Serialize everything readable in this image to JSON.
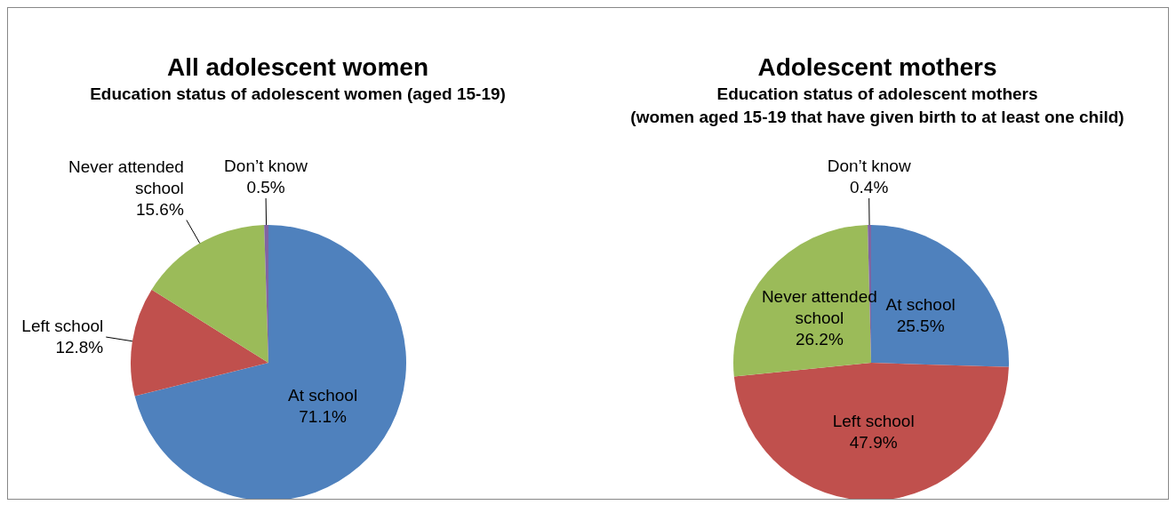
{
  "chart_data": [
    {
      "type": "pie",
      "title": "All adolescent  women",
      "subtitle": "Education status of adolescent women (aged 15-19)",
      "categories": [
        "At school",
        "Left school",
        "Never attended school",
        "Don’t know"
      ],
      "values": [
        71.1,
        12.8,
        15.6,
        0.5
      ],
      "value_labels": [
        "71.1%",
        "12.8%",
        "15.6%",
        "0.5%"
      ],
      "colors": [
        "#4f81bd",
        "#c0504d",
        "#9bbb59",
        "#8064a2"
      ],
      "legend": false
    },
    {
      "type": "pie",
      "title": "Adolescent mothers",
      "subtitle": "Education status of adolescent mothers\n(women aged 15-19 that have given birth to at least one child)",
      "categories": [
        "At school",
        "Left school",
        "Never attended school",
        "Don’t know"
      ],
      "values": [
        25.5,
        47.9,
        26.2,
        0.4
      ],
      "value_labels": [
        "25.5%",
        "47.9%",
        "26.2%",
        "0.4%"
      ],
      "colors": [
        "#4f81bd",
        "#c0504d",
        "#9bbb59",
        "#8064a2"
      ],
      "legend": false
    }
  ]
}
